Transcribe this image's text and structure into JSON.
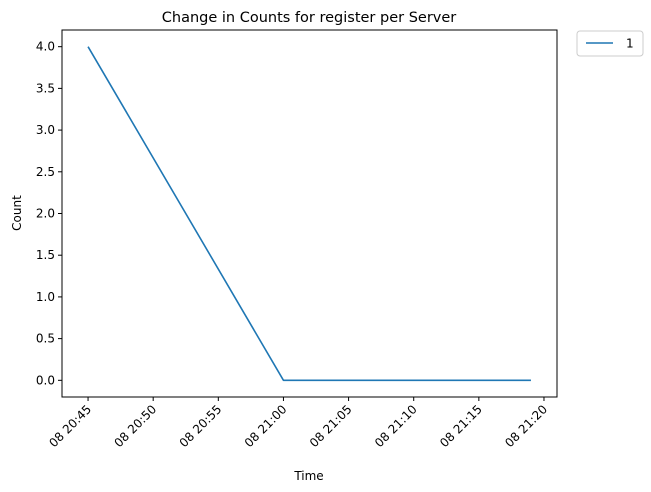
{
  "chart_data": {
    "type": "line",
    "title": "Change in Counts for register per Server",
    "xlabel": "Time",
    "ylabel": "Count",
    "x_ticks": [
      "08 20:45",
      "08 20:50",
      "08 20:55",
      "08 21:00",
      "08 21:05",
      "08 21:10",
      "08 21:15",
      "08 21:20"
    ],
    "y_ticks": [
      "0.0",
      "0.5",
      "1.0",
      "1.5",
      "2.0",
      "2.5",
      "3.0",
      "3.5",
      "4.0"
    ],
    "xlim": [
      "08 20:43",
      "08 21:21"
    ],
    "ylim": [
      -0.2,
      4.2
    ],
    "grid": false,
    "legend_position": "outside-top-right",
    "series": [
      {
        "name": "1",
        "color": "#1f77b4",
        "x": [
          "08 20:45",
          "08 21:00",
          "08 21:19"
        ],
        "y": [
          4.0,
          0.0,
          0.0
        ]
      }
    ]
  }
}
